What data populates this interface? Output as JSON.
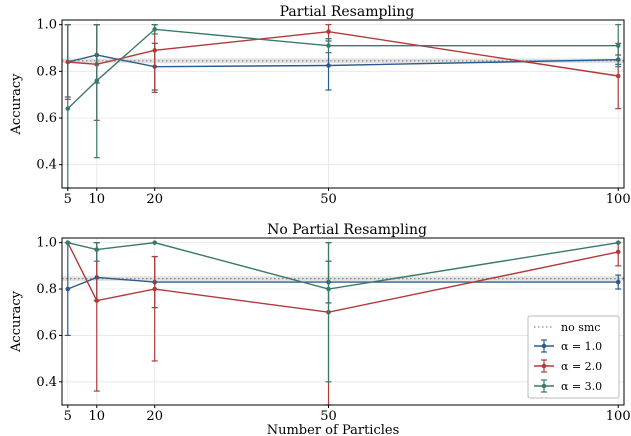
{
  "chart_data": [
    {
      "type": "line",
      "title": "Partial Resampling",
      "xlabel": "",
      "ylabel": "Accuracy",
      "x": [
        5,
        10,
        20,
        50,
        100
      ],
      "x_ticks": [
        5,
        10,
        20,
        50,
        100
      ],
      "y_ticks": [
        0.4,
        0.6,
        0.8,
        1.0
      ],
      "xlim": [
        4,
        101
      ],
      "ylim": [
        0.3,
        1.02
      ],
      "grid": true,
      "baseline": {
        "name": "no smc",
        "value": 0.845,
        "band": [
          0.835,
          0.855
        ],
        "style": "dotted",
        "color": "#888888"
      },
      "series": [
        {
          "name": "α = 1.0",
          "color": "#2b5b8a",
          "values": [
            0.84,
            0.87,
            0.82,
            0.825,
            0.85
          ],
          "err_low": [
            0.69,
            0.75,
            0.72,
            0.72,
            0.83
          ],
          "err_high": [
            1.0,
            1.0,
            0.92,
            0.93,
            0.87
          ]
        },
        {
          "name": "α = 2.0",
          "color": "#b23a3a",
          "values": [
            0.84,
            0.83,
            0.89,
            0.97,
            0.78
          ],
          "err_low": [
            0.68,
            0.59,
            0.71,
            0.94,
            0.64
          ],
          "err_high": [
            1.0,
            1.0,
            1.0,
            1.0,
            0.92
          ]
        },
        {
          "name": "α = 3.0",
          "color": "#3a7a6a",
          "values": [
            0.64,
            0.76,
            0.98,
            0.91,
            0.91
          ],
          "err_low": [
            0.28,
            0.43,
            0.96,
            0.88,
            0.82
          ],
          "err_high": [
            1.0,
            1.0,
            1.0,
            0.94,
            1.0
          ]
        }
      ]
    },
    {
      "type": "line",
      "title": "No Partial Resampling",
      "xlabel": "Number of Particles",
      "ylabel": "Accuracy",
      "x": [
        5,
        10,
        20,
        50,
        100
      ],
      "x_ticks": [
        5,
        10,
        20,
        50,
        100
      ],
      "y_ticks": [
        0.4,
        0.6,
        0.8,
        1.0
      ],
      "xlim": [
        4,
        101
      ],
      "ylim": [
        0.3,
        1.02
      ],
      "grid": true,
      "legend": "lower-right",
      "baseline": {
        "name": "no smc",
        "value": 0.845,
        "band": [
          0.835,
          0.855
        ],
        "style": "dotted",
        "color": "#888888"
      },
      "series": [
        {
          "name": "α = 1.0",
          "color": "#2b5b8a",
          "values": [
            0.8,
            0.85,
            0.83,
            0.83,
            0.83
          ],
          "err_low": [
            0.6,
            0.75,
            0.72,
            0.74,
            0.8
          ],
          "err_high": [
            1.0,
            0.97,
            0.94,
            0.92,
            0.86
          ]
        },
        {
          "name": "α = 2.0",
          "color": "#b23a3a",
          "values": [
            1.0,
            0.75,
            0.8,
            0.7,
            0.96
          ],
          "err_low": [
            1.0,
            0.36,
            0.49,
            0.3,
            0.9
          ],
          "err_high": [
            1.0,
            1.0,
            0.94,
            1.0,
            1.0
          ]
        },
        {
          "name": "α = 3.0",
          "color": "#3a7a6a",
          "values": [
            1.0,
            0.97,
            1.0,
            0.8,
            1.0
          ],
          "err_low": [
            1.0,
            0.92,
            1.0,
            0.4,
            1.0
          ],
          "err_high": [
            1.0,
            1.0,
            1.0,
            1.0,
            1.0
          ]
        }
      ]
    }
  ]
}
